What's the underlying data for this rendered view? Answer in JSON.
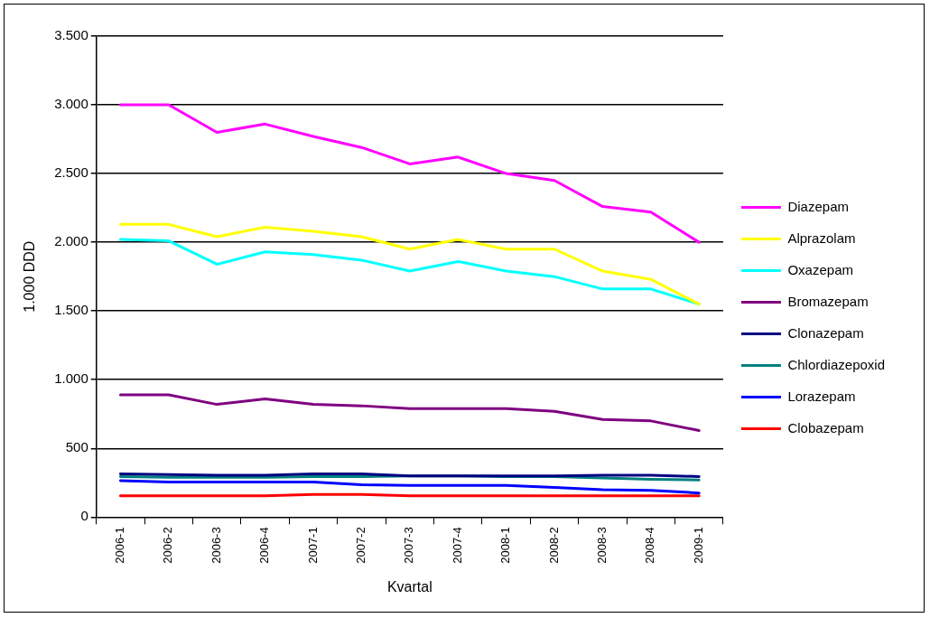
{
  "chart_data": {
    "type": "line",
    "xlabel": "Kvartal",
    "ylabel": "1.000 DDD",
    "categories": [
      "2006-1",
      "2006-2",
      "2006-3",
      "2006-4",
      "2007-1",
      "2007-2",
      "2007-3",
      "2007-4",
      "2008-1",
      "2008-2",
      "2008-3",
      "2008-4",
      "2009-1"
    ],
    "series": [
      {
        "name": "Diazepam",
        "color": "#ff00ff",
        "values": [
          3000,
          3000,
          2800,
          2860,
          2770,
          2690,
          2570,
          2620,
          2500,
          2450,
          2260,
          2220,
          2000
        ]
      },
      {
        "name": "Alprazolam",
        "color": "#ffff00",
        "values": [
          2130,
          2130,
          2040,
          2110,
          2080,
          2040,
          1950,
          2020,
          1950,
          1950,
          1790,
          1730,
          1550
        ]
      },
      {
        "name": "Oxazepam",
        "color": "#00ffff",
        "values": [
          2020,
          2010,
          1840,
          1930,
          1910,
          1870,
          1790,
          1860,
          1790,
          1750,
          1660,
          1660,
          1550
        ]
      },
      {
        "name": "Bromazepam",
        "color": "#800080",
        "values": [
          890,
          890,
          820,
          860,
          820,
          810,
          790,
          790,
          790,
          770,
          710,
          700,
          630
        ]
      },
      {
        "name": "Clonazepam",
        "color": "#000080",
        "values": [
          315,
          310,
          305,
          305,
          315,
          315,
          300,
          300,
          300,
          300,
          305,
          305,
          295
        ]
      },
      {
        "name": "Chlordiazepoxid",
        "color": "#008080",
        "values": [
          295,
          290,
          290,
          290,
          295,
          295,
          300,
          300,
          295,
          295,
          285,
          275,
          270
        ]
      },
      {
        "name": "Lorazepam",
        "color": "#0000ff",
        "values": [
          265,
          255,
          255,
          255,
          255,
          235,
          230,
          230,
          230,
          215,
          200,
          195,
          175
        ]
      },
      {
        "name": "Clobazepam",
        "color": "#ff0000",
        "values": [
          155,
          155,
          155,
          155,
          165,
          165,
          155,
          155,
          155,
          155,
          155,
          155,
          155
        ]
      }
    ],
    "ylim": [
      0,
      3500
    ],
    "yticks": [
      0,
      500,
      {
        "value": 1000,
        "label": "1.000"
      },
      {
        "value": 1500,
        "label": "1.500"
      },
      {
        "value": 2000,
        "label": "2.000"
      },
      {
        "value": 2500,
        "label": "2.500"
      },
      {
        "value": 3000,
        "label": "3.000"
      },
      {
        "value": 3500,
        "label": "3.500"
      }
    ],
    "grid": "y",
    "legend": "right",
    "marker": "none",
    "line_style": "solid"
  }
}
